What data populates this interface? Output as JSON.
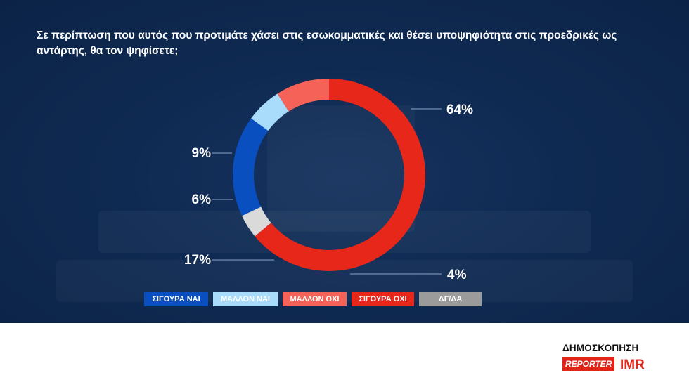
{
  "title": "Σε περίπτωση που αυτός που προτιμάτε χάσει στις εσωκομματικές και θέσει υποψηφιότητα στις προεδρικές ως αντάρτης, θα τον ψηφίσετε;",
  "chart_data": {
    "type": "pie",
    "donut": true,
    "title": "Σε περίπτωση που αυτός που προτιμάτε χάσει στις εσωκομματικές και θέσει υποψηφιότητα στις προεδρικές ως αντάρτης, θα τον ψηφίσετε;",
    "categories": [
      "ΣΙΓΟΥΡΑ ΝΑΙ",
      "ΜΑΛΛΟΝ ΝΑΙ",
      "ΜΑΛΛΟΝ ΟΧΙ",
      "ΣΙΓΟΥΡΑ ΟΧΙ",
      "ΔΓ/ΔΑ"
    ],
    "values": [
      17,
      6,
      9,
      64,
      4
    ],
    "value_labels": [
      "17%",
      "6%",
      "9%",
      "64%",
      "4%"
    ],
    "colors": [
      "#0a4fbf",
      "#a9dcfb",
      "#f46258",
      "#e8271b",
      "#dadada"
    ],
    "legend_position": "bottom"
  },
  "legend": [
    {
      "label": "ΣΙΓΟΥΡΑ ΝΑΙ",
      "color": "#0a4fbf"
    },
    {
      "label": "ΜΑΛΛΟΝ ΝΑΙ",
      "color": "#a9dcfb"
    },
    {
      "label": "ΜΑΛΛΟΝ ΟΧΙ",
      "color": "#f46258"
    },
    {
      "label": "ΣΙΓΟΥΡΑ ΟΧΙ",
      "color": "#e8271b"
    },
    {
      "label": "ΔΓ/ΔΑ",
      "color": "#9b9b9b"
    }
  ],
  "branding": {
    "poll_label": "ΔΗΜΟΣΚΟΠΗΣΗ",
    "reporter": "REPORTER",
    "imr": "IMR",
    "reporter_color": "#e22418"
  }
}
